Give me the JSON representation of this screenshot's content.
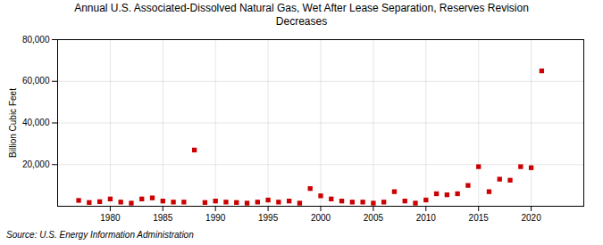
{
  "chart_data": {
    "type": "scatter",
    "title": "Annual U.S. Associated-Dissolved Natural Gas, Wet After Lease Separation, Reserves Revision\nDecreases",
    "ylabel": "Billion Cubic Feet",
    "annotation": "Source: U.S. Energy Information Administration",
    "x": [
      1977,
      1978,
      1979,
      1980,
      1981,
      1982,
      1983,
      1984,
      1985,
      1986,
      1987,
      1988,
      1989,
      1990,
      1991,
      1992,
      1993,
      1994,
      1995,
      1996,
      1997,
      1998,
      1999,
      2000,
      2001,
      2002,
      2003,
      2004,
      2005,
      2006,
      2007,
      2008,
      2009,
      2010,
      2011,
      2012,
      2013,
      2014,
      2015,
      2016,
      2017,
      2018,
      2019,
      2020,
      2021
    ],
    "values": [
      2800,
      1800,
      2200,
      3500,
      2000,
      1500,
      3500,
      4000,
      2500,
      2000,
      2000,
      27000,
      1800,
      2500,
      2000,
      1800,
      1500,
      2000,
      3000,
      2000,
      2500,
      1500,
      8500,
      5000,
      3500,
      2500,
      2000,
      2000,
      1500,
      2000,
      7000,
      2500,
      1500,
      3000,
      6000,
      5500,
      6000,
      10000,
      19000,
      7000,
      13000,
      12500,
      19000,
      18500,
      65000
    ],
    "color": "#cc0000",
    "marker": "square",
    "xlim": [
      1975,
      2025
    ],
    "xticks": [
      1980,
      1985,
      1990,
      1995,
      2000,
      2005,
      2010,
      2015,
      2020
    ],
    "ylim": [
      0,
      80000
    ],
    "yticks": [
      {
        "value": 20000,
        "label": "20,000"
      },
      {
        "value": 40000,
        "label": "40,000"
      },
      {
        "value": 60000,
        "label": "60,000"
      },
      {
        "value": 80000,
        "label": "80,000"
      }
    ],
    "grid": true
  }
}
